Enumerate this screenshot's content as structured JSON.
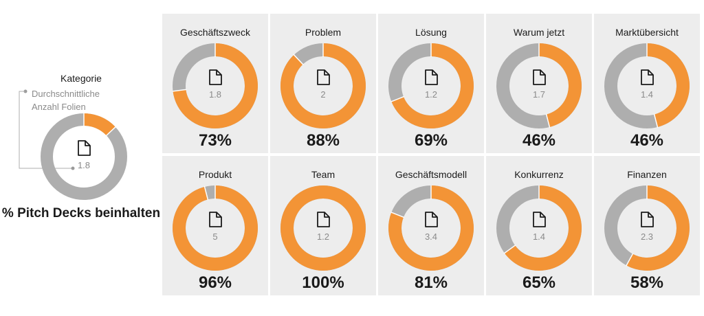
{
  "legend": {
    "title": "Kategorie",
    "avg_label": "Durchschnittliche Anzahl Folien",
    "sample_value": "1.8",
    "sample_percent": 13,
    "heading": "% Pitch Decks beinhalten"
  },
  "colors": {
    "included": "#f39436",
    "rest": "#aeaeae",
    "panel_bg": "#ededed",
    "icon": "#1a1a1a"
  },
  "icon_name": "document-icon",
  "chart_data": {
    "type": "donut",
    "categories": [
      "Geschäftszweck",
      "Problem",
      "Lösung",
      "Warum jetzt",
      "Marktübersicht",
      "Produkt",
      "Team",
      "Geschäftsmodell",
      "Konkurrenz",
      "Finanzen"
    ],
    "series": [
      {
        "values": [
          73,
          88,
          69,
          46,
          46,
          96,
          100,
          81,
          65,
          58
        ]
      }
    ],
    "avg_slides": [
      "1.8",
      "2",
      "1.2",
      "1.7",
      "1.4",
      "5",
      "1.2",
      "3.4",
      "1.4",
      "2.3"
    ],
    "percent_labels": [
      "73%",
      "88%",
      "69%",
      "46%",
      "46%",
      "96%",
      "100%",
      "81%",
      "65%",
      "58%"
    ],
    "ylim": [
      0,
      100
    ]
  }
}
